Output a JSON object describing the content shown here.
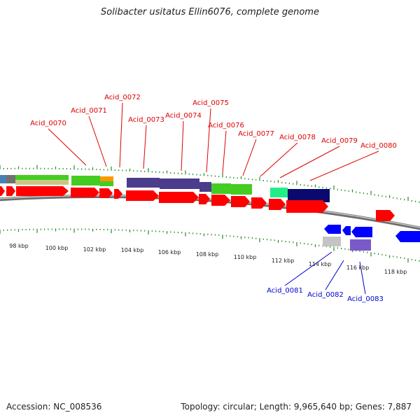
{
  "title": "Solibacter usitatus Ellin6076, complete genome",
  "footer": {
    "accession": "Accession: NC_008536",
    "summary": "Topology: circular; Length: 9,965,640 bp; Genes: 7,887"
  },
  "scale_labels": [
    "98 kbp",
    "100 kbp",
    "102 kbp",
    "104 kbp",
    "106 kbp",
    "108 kbp",
    "110 kbp",
    "112 kbp",
    "114 kbp",
    "116 kbp",
    "118 kbp"
  ],
  "gene_labels_plus": [
    "Acid_0070",
    "Acid_0071",
    "Acid_0072",
    "Acid_0073",
    "Acid_0074",
    "Acid_0075",
    "Acid_0076",
    "Acid_0077",
    "Acid_0078",
    "Acid_0079",
    "Acid_0080"
  ],
  "gene_labels_minus": [
    "Acid_0081",
    "Acid_0082",
    "Acid_0083"
  ],
  "colors": {
    "plus_label": "#dd0000",
    "minus_label": "#0000cc",
    "cds_red": "#ff0000",
    "cds_blue": "#0000ff",
    "tick": "#228b22",
    "backbone": "#8c8c8c"
  }
}
